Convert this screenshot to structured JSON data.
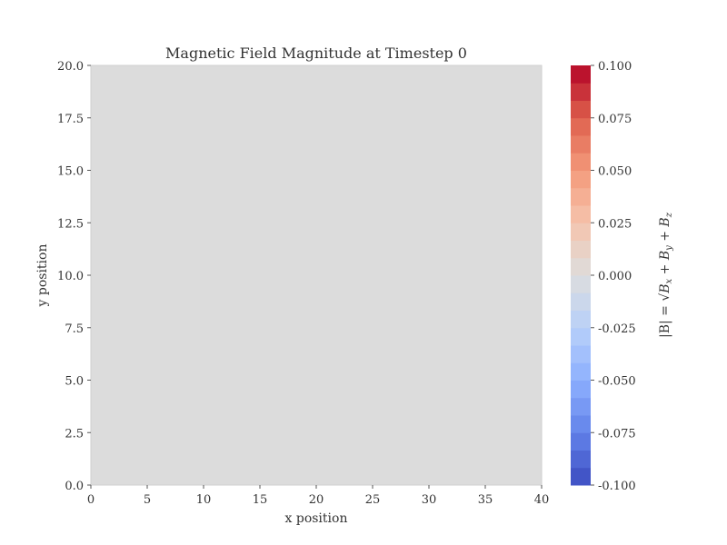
{
  "chart_data": {
    "type": "heatmap",
    "title": "Magnetic Field Magnitude at Timestep 0",
    "xlabel": "x position",
    "ylabel": "y position",
    "xlim": [
      0,
      40
    ],
    "ylim": [
      0,
      20
    ],
    "x_ticks": [
      "0",
      "5",
      "10",
      "15",
      "20",
      "25",
      "30",
      "35",
      "40"
    ],
    "y_ticks": [
      "0.0",
      "2.5",
      "5.0",
      "7.5",
      "10.0",
      "12.5",
      "15.0",
      "17.5",
      "20.0"
    ],
    "field_value": 0.0,
    "field_color": "#dcdcdc",
    "colorbar": {
      "label": "|B| = √(B_x² + B_y² + B_z²)",
      "label_parts": {
        "pre": "|B| = ",
        "bx": "B",
        "bx_sub": "x",
        "by": "B",
        "by_sub": "y",
        "bz": "B",
        "bz_sub": "z",
        "plus": " + "
      },
      "range": [
        -0.1,
        0.1
      ],
      "levels": 24,
      "colormap": "coolwarm",
      "ticks": [
        "0.100",
        "0.075",
        "0.050",
        "0.025",
        "0.000",
        "-0.025",
        "-0.050",
        "-0.075",
        "-0.100"
      ],
      "tick_values": [
        0.1,
        0.075,
        0.05,
        0.025,
        0.0,
        -0.025,
        -0.05,
        -0.075,
        -0.1
      ]
    },
    "grid": false
  }
}
